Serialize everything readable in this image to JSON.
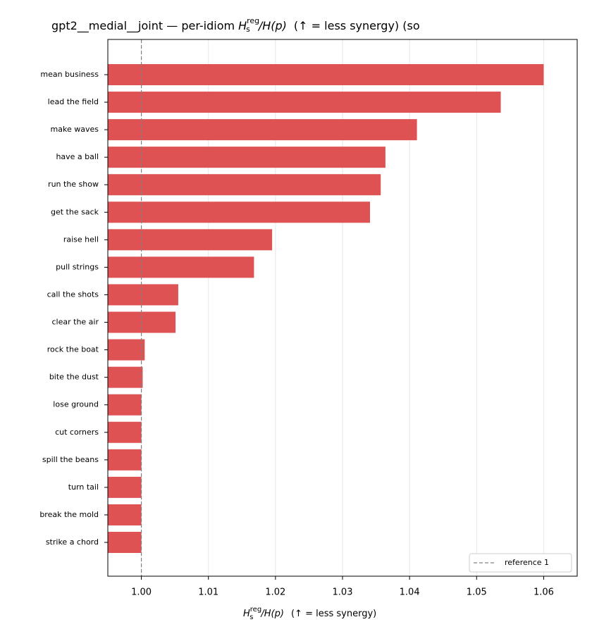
{
  "chart_data": {
    "type": "barh",
    "title": "gpt2__medial__joint — per-idiom",
    "title_suffix": "(↑ = less synergy) (so",
    "metric": {
      "symbol": "H",
      "sub": "s",
      "sup": "reg",
      "divisor": "/H(p)"
    },
    "xlabel_suffix": "(↑ = less synergy)",
    "categories": [
      "mean business",
      "lead the field",
      "make waves",
      "have a ball",
      "run the show",
      "get the sack",
      "raise hell",
      "pull strings",
      "call the shots",
      "clear the air",
      "rock the boat",
      "bite the dust",
      "lose ground",
      "cut corners",
      "spill the beans",
      "turn tail",
      "break the mold",
      "strike a chord"
    ],
    "values": [
      1.06,
      1.0536,
      1.0411,
      1.0364,
      1.0357,
      1.0341,
      1.0195,
      1.0168,
      1.0055,
      1.0051,
      1.0005,
      1.0002,
      1.0,
      1.0,
      1.0,
      1.0,
      1.0,
      1.0
    ],
    "color": "#de5253",
    "xlim": [
      0.995,
      1.065
    ],
    "xticks": [
      {
        "value": 1,
        "label": "1.00"
      },
      1.01,
      1.02,
      1.03,
      1.04,
      1.05,
      1.06
    ],
    "grid": true,
    "reference": {
      "value": 1,
      "label": "reference 1",
      "color": "#808080"
    },
    "legend": "lower right"
  }
}
